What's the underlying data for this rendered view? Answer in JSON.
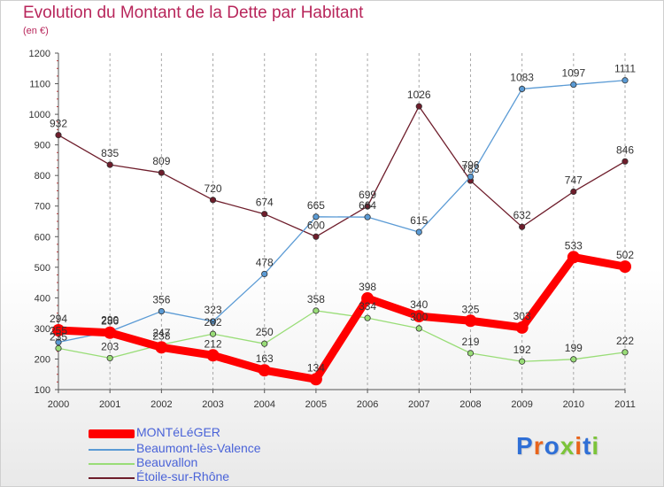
{
  "title": "Evolution du Montant de la Dette par Habitant",
  "subtitle": "(en €)",
  "logo": {
    "text": "Proxiti",
    "letter_colors": [
      "#2f6fd6",
      "#e8641b",
      "#2f6fd6",
      "#7cc43a",
      "#e8641b",
      "#2f6fd6",
      "#7cc43a"
    ]
  },
  "chart_data": {
    "type": "line",
    "x": [
      2000,
      2001,
      2002,
      2003,
      2004,
      2005,
      2006,
      2007,
      2008,
      2009,
      2010,
      2011
    ],
    "x_tick_labels": [
      "2000",
      "2001",
      "2002",
      "2003",
      "2004",
      "2005",
      "2006",
      "2007",
      "2008",
      "2009",
      "2010",
      "2011"
    ],
    "ylim": [
      100,
      1200
    ],
    "y_ticks": [
      100,
      200,
      300,
      400,
      500,
      600,
      700,
      800,
      900,
      1000,
      1100,
      1200
    ],
    "grid": "vertical dashed",
    "legend_position": "bottom-left",
    "series": [
      {
        "name": "Étoile-sur-Rhône",
        "color": "#6e1d2b",
        "values": [
          932,
          835,
          809,
          720,
          674,
          600,
          699,
          1026,
          783,
          632,
          747,
          846
        ],
        "data_labels": [
          "932",
          "835",
          "809",
          "720",
          "674",
          "600",
          "699",
          "1026",
          "783",
          "632",
          "747",
          "846"
        ],
        "emphasis": false
      },
      {
        "name": "Beaumont-lès-Valence",
        "color": "#5b9bd5",
        "values": [
          255,
          290,
          356,
          323,
          478,
          665,
          664,
          615,
          796,
          1083,
          1097,
          1111
        ],
        "data_labels": [
          "255",
          "290",
          "356",
          "323",
          "478",
          "665",
          "664",
          "615",
          "796",
          "1083",
          "1097",
          "1111"
        ],
        "emphasis": false
      },
      {
        "name": "Beauvallon",
        "color": "#99dd77",
        "values": [
          235,
          203,
          247,
          282,
          250,
          358,
          334,
          300,
          219,
          192,
          199,
          222
        ],
        "data_labels": [
          "235",
          "203",
          "247",
          "282",
          "250",
          "358",
          "334",
          "300",
          "219",
          "192",
          "199",
          "222"
        ],
        "emphasis": false
      },
      {
        "name": "MONTéLéGER",
        "color": "#ff0000",
        "values": [
          294,
          286,
          238,
          212,
          163,
          134,
          398,
          340,
          325,
          303,
          533,
          502
        ],
        "data_labels": [
          "294",
          "286",
          "238",
          "212",
          "163",
          "134",
          "398",
          "340",
          "325",
          "303",
          "533",
          "502"
        ],
        "emphasis": true
      }
    ],
    "legend": [
      {
        "label": "MONTéLéGER",
        "color": "#ff0000",
        "thick": true
      },
      {
        "label": "Beaumont-lès-Valence",
        "color": "#5b9bd5",
        "thick": false
      },
      {
        "label": "Beauvallon",
        "color": "#99dd77",
        "thick": false
      },
      {
        "label": "Étoile-sur-Rhône",
        "color": "#6e1d2b",
        "thick": false
      }
    ]
  }
}
